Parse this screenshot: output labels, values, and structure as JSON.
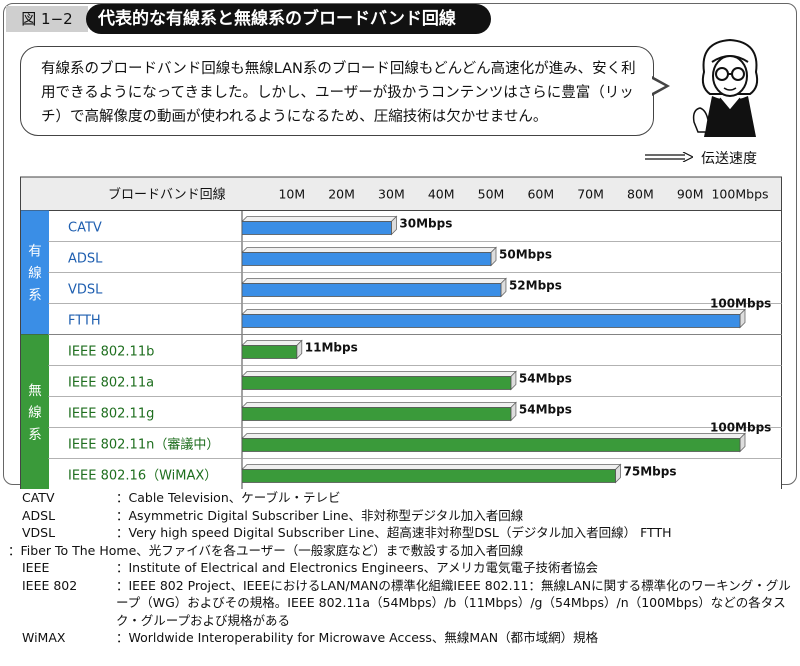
{
  "figure": {
    "number": "図 1−2",
    "title": "代表的な有線系と無線系のブロードバンド回線"
  },
  "speech": {
    "text": "有線系のブロードバンド回線も無線LAN系のブロード回線もどんどん高速化が進み、安く利用できるようになってきました。しかし、ユーザーが扱かうコンテンツはさらに豊富（リッチ）で高解像度の動画が使われるようになるため、圧縮技術は欠かせません。"
  },
  "speed_axis_label": "伝送速度",
  "chart_data": {
    "type": "bar",
    "orientation": "horizontal",
    "column_header": "ブロードバンド回線",
    "x_ticks": [
      "10M",
      "20M",
      "30M",
      "40M",
      "50M",
      "60M",
      "70M",
      "80M",
      "90M",
      "100Mbps"
    ],
    "xlim": [
      0,
      100
    ],
    "groups": [
      {
        "name": "有線系",
        "color": "#3a8ee6",
        "items": [
          {
            "label": "CATV",
            "value": 30,
            "value_label": "30Mbps"
          },
          {
            "label": "ADSL",
            "value": 50,
            "value_label": "50Mbps"
          },
          {
            "label": "VDSL",
            "value": 52,
            "value_label": "52Mbps"
          },
          {
            "label": "FTTH",
            "value": 100,
            "value_label": "100Mbps"
          }
        ]
      },
      {
        "name": "無線系",
        "color": "#3a9a3a",
        "items": [
          {
            "label": "IEEE 802.11b",
            "value": 11,
            "value_label": "11Mbps"
          },
          {
            "label": "IEEE 802.11a",
            "value": 54,
            "value_label": "54Mbps"
          },
          {
            "label": "IEEE 802.11g",
            "value": 54,
            "value_label": "54Mbps"
          },
          {
            "label": "IEEE 802.11n（審議中）",
            "value": 100,
            "value_label": "100Mbps"
          },
          {
            "label": "IEEE 802.16（WiMAX）",
            "value": 75,
            "value_label": "75Mbps"
          }
        ]
      }
    ]
  },
  "glossary": [
    {
      "term": "CATV",
      "def": "：Cable Television、ケーブル・テレビ"
    },
    {
      "term": "ADSL",
      "def": "：Asymmetric Digital Subscriber Line、非対称型デジタル加入者回線"
    },
    {
      "term": "VDSL",
      "def": "：Very high speed Digital Subscriber Line、超高速非対称型DSL（デジタル加入者回線） FTTH"
    },
    {
      "term": "",
      "def": "：Fiber To The Home、光ファイバを各ユーザー（一般家庭など）まで敷設する加入者回線"
    },
    {
      "term": "IEEE",
      "def": "：Institute of Electrical and Electronics Engineers、アメリカ電気電子技術者協会"
    },
    {
      "term": "IEEE 802",
      "def": "：IEEE 802 Project、IEEEにおけるLAN/MANの標準化組織IEEE 802.11：無線LANに関する標準化のワーキング・グループ（WG）およびその規格。IEEE 802.11a（54Mbps）/b（11Mbps）/g（54Mbps）/n（100Mbps）などの各タスク・グループおよび規格がある"
    },
    {
      "term": "WiMAX",
      "def": "：Worldwide Interoperability for Microwave Access、無線MAN（都市域網）規格"
    }
  ]
}
